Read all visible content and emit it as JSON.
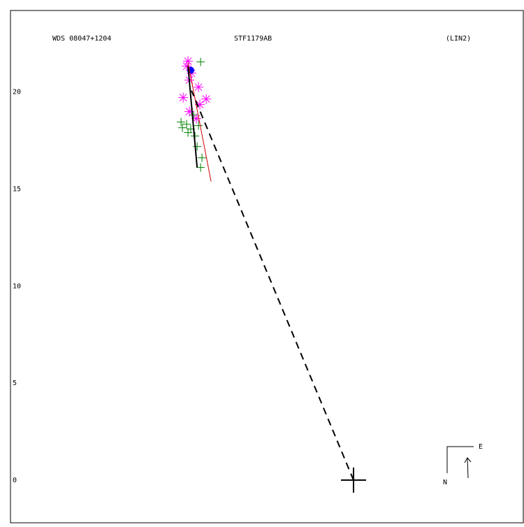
{
  "chart_data": {
    "type": "scatter",
    "texts": {
      "left": "WDS 08047+1204",
      "center": "STF1179AB",
      "right": "(LIN2)"
    },
    "compass": {
      "east": "E",
      "north": "N"
    },
    "xlim": [
      -17.7,
      8.76
    ],
    "ylim": [
      -2.2,
      24.2
    ],
    "yticks": [
      0,
      5,
      10,
      15,
      20
    ],
    "series": [
      {
        "style": "plus",
        "color": "#008000",
        "x": [
          -7.89,
          -8.9,
          -8.83,
          -8.61,
          -8.4,
          -8.54,
          -8.18,
          -8.07,
          -7.82,
          -7.89,
          -8.0,
          -8.25
        ],
        "y": [
          21.55,
          18.45,
          18.16,
          18.34,
          18.09,
          17.91,
          17.73,
          17.19,
          16.61,
          16.11,
          18.27,
          18.81
        ]
      },
      {
        "style": "asterisk",
        "color": "#ff00ff",
        "x": [
          -8.79,
          -7.6,
          -8.0,
          -8.47,
          -8.61,
          -8.36,
          -7.93,
          -8.47,
          -8.11,
          -8.54
        ],
        "y": [
          19.71,
          19.64,
          20.25,
          20.61,
          21.33,
          20.97,
          19.35,
          18.99,
          18.63,
          21.59
        ]
      },
      {
        "style": "dot",
        "color": "#0000ff",
        "x": [
          -8.4
        ],
        "y": [
          21.12
        ]
      },
      {
        "style": "solid",
        "color": "#000000",
        "x": [
          -8.54,
          -8.07
        ],
        "y": [
          21.33,
          16.11
        ]
      },
      {
        "style": "solid",
        "color": "#cc0000",
        "x": [
          -8.54,
          -7.35
        ],
        "y": [
          21.51,
          15.39
        ]
      },
      {
        "style": "dashed",
        "color": "#000000",
        "x": [
          0,
          -8.36
        ],
        "y": [
          0,
          20.07
        ]
      }
    ]
  }
}
